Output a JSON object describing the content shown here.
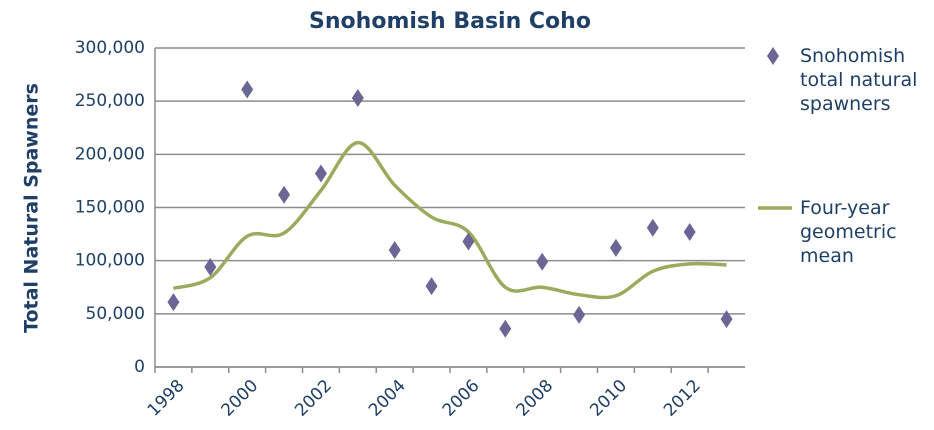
{
  "chart_data": {
    "type": "scatter-line",
    "title": "Snohomish Basin Coho",
    "y_label": "Total Natural Spawners",
    "categories": [
      "1998",
      null,
      "2000",
      null,
      "2002",
      null,
      "2004",
      null,
      "2006",
      null,
      "2008",
      null,
      "2010",
      null,
      "2012",
      null
    ],
    "series": [
      {
        "name": "Snohomish total natural spawners",
        "color": "#6b6794",
        "kind": "markers",
        "values": [
          61000,
          94000,
          261000,
          162000,
          182000,
          253000,
          110000,
          76000,
          118000,
          36000,
          99000,
          49000,
          112000,
          131000,
          127000,
          45000
        ]
      },
      {
        "name": "Four-year geometric mean",
        "color": "#9aab5e",
        "kind": "smooth-line",
        "values": [
          74000,
          84000,
          123000,
          126000,
          166000,
          211000,
          171000,
          141000,
          127000,
          75000,
          75000,
          68000,
          67000,
          90000,
          97000,
          96000
        ]
      }
    ],
    "ylim": [
      0,
      300000
    ],
    "yticks": [
      0,
      {
        "value": 50000,
        "label": "50,000"
      },
      {
        "value": 100000,
        "label": "100,000"
      },
      {
        "value": 150000,
        "label": "150,000"
      },
      {
        "value": 200000,
        "label": "200,000"
      },
      {
        "value": 250000,
        "label": "250,000"
      },
      {
        "value": 300000,
        "label": "300,000"
      }
    ],
    "grid": true,
    "legend": "right"
  }
}
